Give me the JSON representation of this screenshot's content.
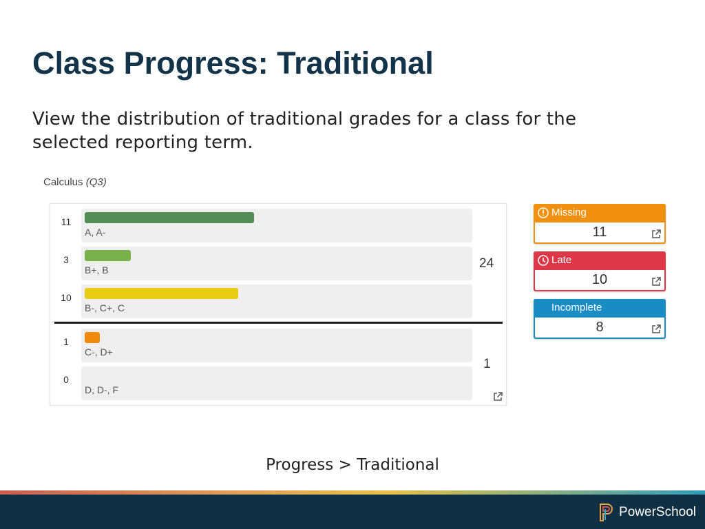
{
  "slide": {
    "title": "Class Progress: Traditional",
    "description": "View the distribution of traditional grades for a class for the selected reporting term.",
    "caption": "Progress > Traditional"
  },
  "class_label": {
    "name": "Calculus",
    "term": "(Q3)"
  },
  "grade_rows": [
    {
      "count": "11",
      "label": "A, A-",
      "color": "#548c57",
      "fraction": 0.44
    },
    {
      "count": "3",
      "label": "B+, B",
      "color": "#7ab04a",
      "fraction": 0.12
    },
    {
      "count": "10",
      "label": "B-, C+, C",
      "color": "#e8cc14",
      "fraction": 0.4
    },
    {
      "count": "1",
      "label": "C-, D+",
      "color": "#f08a0c",
      "fraction": 0.04
    },
    {
      "count": "0",
      "label": "D, D-, F",
      "color": "#efefef",
      "fraction": 0
    }
  ],
  "totals": {
    "passing": "24",
    "failing": "1"
  },
  "status_cards": [
    {
      "label": "Missing",
      "value": "11",
      "color": "#f0900e",
      "icon": "exclamation-circle-icon"
    },
    {
      "label": "Late",
      "value": "10",
      "color": "#dc3848",
      "icon": "clock-icon"
    },
    {
      "label": "Incomplete",
      "value": "8",
      "color": "#1a8cc4",
      "icon": ""
    }
  ],
  "brand": {
    "name": "PowerSchool"
  }
}
